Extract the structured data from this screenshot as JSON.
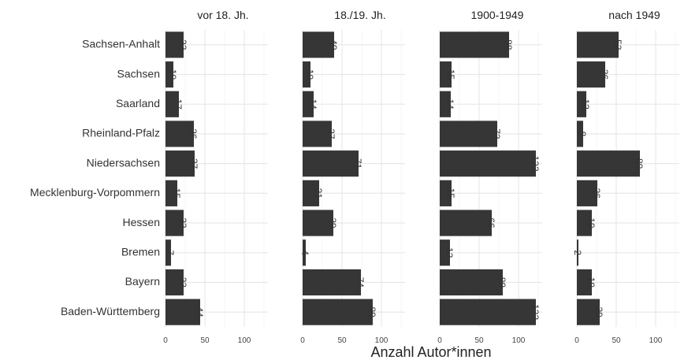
{
  "chart_data": {
    "type": "bar",
    "orientation": "horizontal",
    "title": "",
    "xlabel": "Anzahl Autor*innen",
    "ylabel": "",
    "xlim": [
      0,
      130
    ],
    "x_ticks": [
      0,
      50,
      100
    ],
    "grid": true,
    "legend": "none",
    "bar_color": "#363636",
    "categories": [
      "Sachsen-Anhalt",
      "Sachsen",
      "Saarland",
      "Rheinland-Pfalz",
      "Niedersachsen",
      "Mecklenburg-Vorpommern",
      "Hessen",
      "Bremen",
      "Bayern",
      "Baden-Württemberg"
    ],
    "series": [
      {
        "name": "vor 18. Jh.",
        "values": [
          23,
          10,
          17,
          36,
          37,
          15,
          23,
          7,
          23,
          44
        ]
      },
      {
        "name": "18./19. Jh.",
        "values": [
          40,
          10,
          14,
          37,
          71,
          21,
          39,
          4,
          74,
          89
        ]
      },
      {
        "name": "1900-1949",
        "values": [
          88,
          15,
          14,
          73,
          122,
          15,
          66,
          13,
          80,
          122
        ]
      },
      {
        "name": "nach 1949",
        "values": [
          53,
          36,
          12,
          8,
          80,
          26,
          19,
          2,
          19,
          29
        ]
      }
    ]
  }
}
